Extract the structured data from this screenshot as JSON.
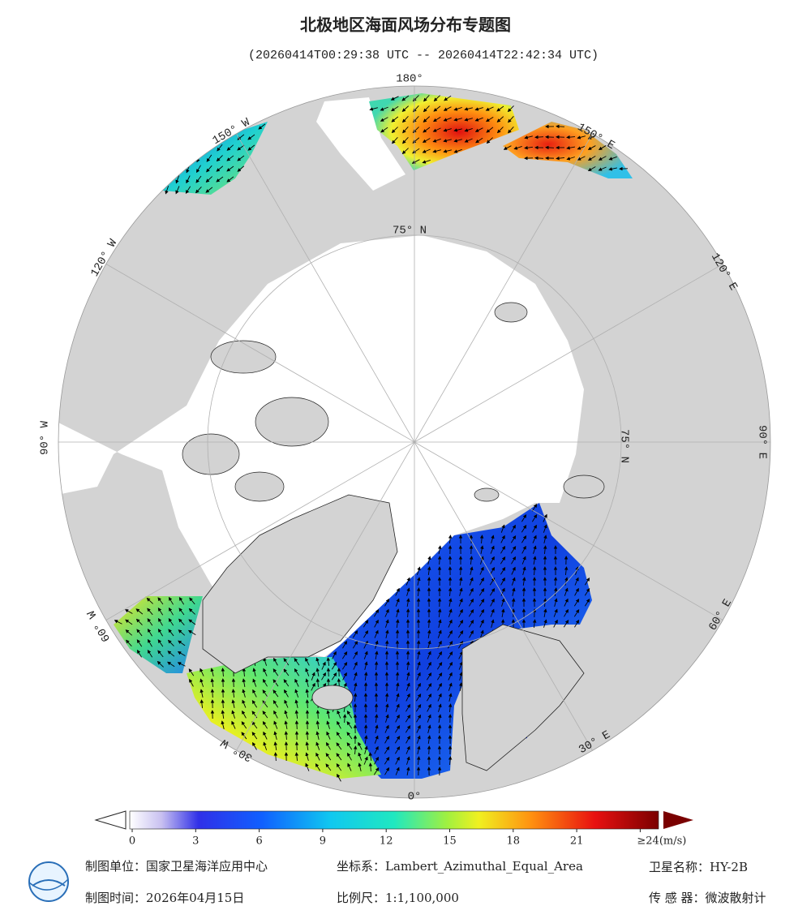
{
  "header": {
    "title": "北极地区海面风场分布专题图",
    "subtitle": "(20260414T00:29:38 UTC -- 20260414T22:42:34 UTC)"
  },
  "graticule": {
    "lon_labels": [
      "180°",
      "150° E",
      "120° E",
      "90° E",
      "60° E",
      "30° E",
      "0°",
      "30° W",
      "60° W",
      "90° W",
      "120° W",
      "150° W"
    ],
    "lat_labels": [
      "75° N",
      "75° N"
    ]
  },
  "colorbar": {
    "ticks": [
      0,
      3,
      6,
      9,
      12,
      15,
      18,
      21,
      {
        "value": 24,
        "label": "≥24(m/s)"
      }
    ]
  },
  "footer": {
    "producer": "制图单位：国家卫星海洋应用中心",
    "crs": "坐标系：Lambert_Azimuthal_Equal_Area",
    "satellite": "卫星名称：HY-2B",
    "date": "制图时间：2026年04月15日",
    "scale": "比例尺：1:1,100,000",
    "sensor": "传 感 器：微波散射计"
  }
}
